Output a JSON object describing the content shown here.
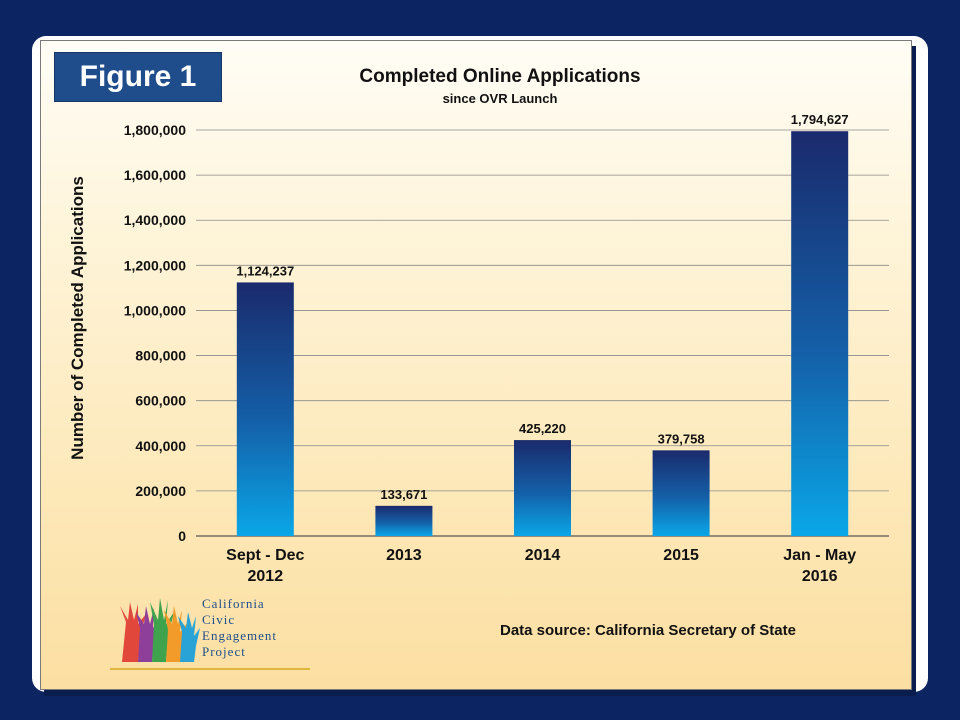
{
  "figure_label": "Figure 1",
  "source_note": "Data source: California Secretary of State",
  "logo": {
    "lines": [
      "California",
      "Civic",
      "Engagement",
      "Project"
    ]
  },
  "colors": {
    "page_bg": "#0c2461",
    "bar_top": "#1a2a6c",
    "bar_bottom": "#0aa7e8",
    "figure_label_bg": "#1f4d8c"
  },
  "chart_data": {
    "type": "bar",
    "title": "Completed Online Applications",
    "subtitle": "since OVR Launch",
    "xlabel": "",
    "ylabel": "Number of Completed Applications",
    "ylim": [
      0,
      1800000
    ],
    "yticks": [
      "0",
      "200,000",
      "400,000",
      "600,000",
      "800,000",
      "1,000,000",
      "1,200,000",
      "1,400,000",
      "1,600,000",
      "1,800,000"
    ],
    "grid": true,
    "categories": [
      [
        "Sept - Dec",
        "2012"
      ],
      [
        "2013"
      ],
      [
        "2014"
      ],
      [
        "2015"
      ],
      [
        "Jan - May",
        "2016"
      ]
    ],
    "values": [
      1124237,
      133671,
      425220,
      379758,
      1794627
    ],
    "data_labels": [
      "1,124,237",
      "133,671",
      "425,220",
      "379,758",
      "1,794,627"
    ]
  }
}
